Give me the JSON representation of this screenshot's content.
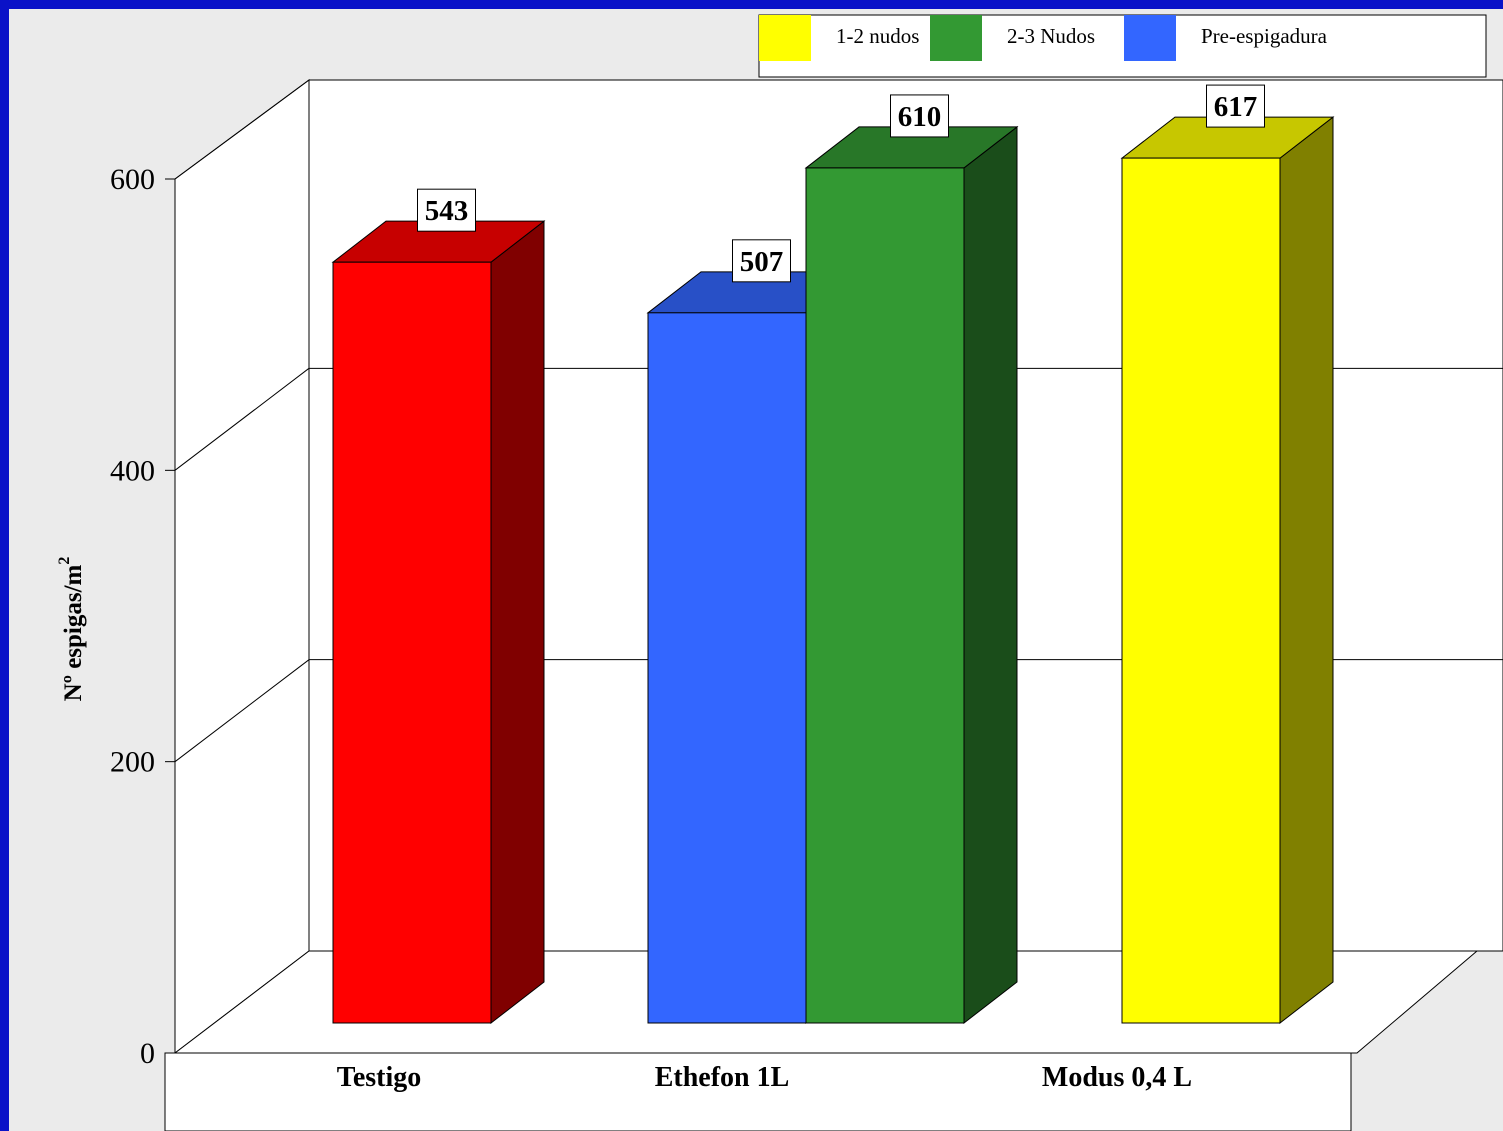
{
  "chart_data": {
    "type": "bar",
    "title": "",
    "xlabel": "",
    "ylabel": "Nº espigas/m",
    "ylabel_superscript": "2",
    "ylim": [
      0,
      600
    ],
    "yticks": [
      "0",
      "200",
      "400",
      "600"
    ],
    "grid": true,
    "legend_position": "top-right",
    "categories": [
      "Testigo",
      "Ethefon 1L",
      "Modus 0,4 L"
    ],
    "series": [
      {
        "name": "Testigo",
        "color": "#ff0000",
        "values": [
          543,
          null,
          null
        ]
      },
      {
        "name": "Pre-espigadura",
        "color": "#3366ff",
        "values": [
          null,
          507,
          null
        ]
      },
      {
        "name": "2-3 Nudos",
        "color": "#339933",
        "values": [
          null,
          610,
          null
        ]
      },
      {
        "name": "1-2 nudos",
        "color": "#ffff00",
        "values": [
          null,
          null,
          617
        ]
      }
    ],
    "legend": [
      {
        "label": "1-2 nudos",
        "color": "#ffff00"
      },
      {
        "label": "2-3 Nudos",
        "color": "#339933"
      },
      {
        "label": "Pre-espigadura",
        "color": "#3366ff"
      }
    ]
  }
}
